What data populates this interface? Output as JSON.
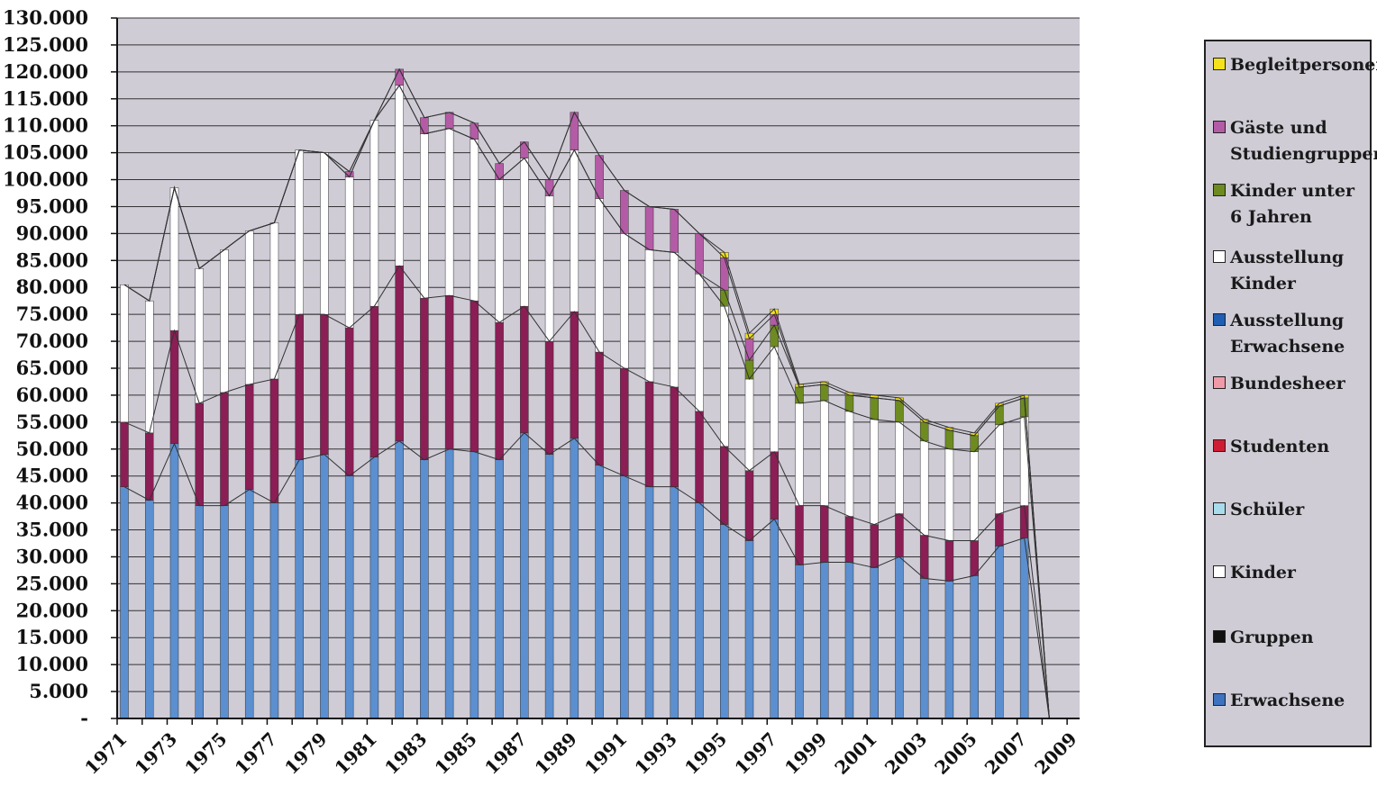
{
  "chart_data": {
    "type": "bar",
    "stacked": true,
    "title": "",
    "xlabel": "",
    "ylabel": "",
    "ylim": [
      0,
      130000
    ],
    "y_ticks": [
      "-",
      "5.000",
      "10.000",
      "15.000",
      "20.000",
      "25.000",
      "30.000",
      "35.000",
      "40.000",
      "45.000",
      "50.000",
      "55.000",
      "60.000",
      "65.000",
      "70.000",
      "75.000",
      "80.000",
      "85.000",
      "90.000",
      "95.000",
      "100.000",
      "105.000",
      "110.000",
      "115.000",
      "120.000",
      "125.000",
      "130.000"
    ],
    "x_tick_labels": [
      "1971",
      "1973",
      "1975",
      "1977",
      "1979",
      "1981",
      "1983",
      "1985",
      "1987",
      "1989",
      "1991",
      "1993",
      "1995",
      "1997",
      "1999",
      "2001",
      "2003",
      "2005",
      "2007",
      "2009"
    ],
    "x_range": [
      1971,
      2009
    ],
    "grid": true,
    "legend_position": "right",
    "categories": [
      "1971",
      "1972",
      "1973",
      "1974",
      "1975",
      "1976",
      "1977",
      "1978",
      "1979",
      "1980",
      "1981",
      "1982",
      "1983",
      "1984",
      "1985",
      "1986",
      "1987",
      "1988",
      "1989",
      "1990",
      "1991",
      "1992",
      "1993",
      "1994",
      "1995",
      "1996",
      "1997",
      "1998",
      "1999",
      "2000",
      "2001",
      "2002",
      "2003",
      "2004",
      "2005",
      "2006",
      "2007",
      "2008",
      "2009"
    ],
    "series": [
      {
        "name": "Erwachsene",
        "color": "#5b8fd0",
        "values": [
          43000,
          40500,
          51000,
          39500,
          39500,
          42500,
          40000,
          48000,
          49000,
          45000,
          48500,
          51500,
          48000,
          50000,
          49500,
          48000,
          53000,
          49000,
          52000,
          47000,
          45000,
          43000,
          43000,
          40000,
          36000,
          33000,
          37000,
          28500,
          29000,
          29000,
          28000,
          30000,
          26000,
          25500,
          26500,
          32000,
          33500,
          0,
          0
        ]
      },
      {
        "name": "Gruppen",
        "color": "#111111",
        "values": [
          0,
          0,
          0,
          0,
          0,
          0,
          0,
          0,
          0,
          0,
          0,
          0,
          0,
          0,
          0,
          0,
          0,
          0,
          0,
          0,
          0,
          0,
          0,
          0,
          0,
          0,
          0,
          0,
          0,
          0,
          0,
          0,
          0,
          0,
          0,
          0,
          0,
          0,
          0
        ]
      },
      {
        "name": "Kinder",
        "color": "#ffffff",
        "values": [
          0,
          0,
          0,
          0,
          0,
          0,
          0,
          0,
          0,
          0,
          0,
          0,
          0,
          0,
          0,
          0,
          0,
          0,
          0,
          0,
          0,
          0,
          0,
          0,
          0,
          0,
          0,
          0,
          0,
          0,
          0,
          0,
          0,
          0,
          0,
          0,
          0,
          0,
          0
        ]
      },
      {
        "name": "Schüler",
        "color": "#a8dcec",
        "values": [
          0,
          0,
          0,
          0,
          0,
          0,
          0,
          0,
          0,
          0,
          0,
          0,
          0,
          0,
          0,
          0,
          0,
          0,
          0,
          0,
          0,
          0,
          0,
          0,
          0,
          0,
          0,
          0,
          0,
          0,
          0,
          0,
          0,
          0,
          0,
          0,
          0,
          0,
          0
        ]
      },
      {
        "name": "Studenten",
        "color": "#d01c33",
        "values": [
          0,
          0,
          0,
          0,
          0,
          0,
          0,
          0,
          0,
          0,
          0,
          0,
          0,
          0,
          0,
          0,
          0,
          0,
          0,
          0,
          0,
          0,
          0,
          0,
          0,
          0,
          0,
          0,
          0,
          0,
          0,
          0,
          0,
          0,
          0,
          0,
          0,
          0,
          0
        ]
      },
      {
        "name": "Bundesheer",
        "color": "#f09aa8",
        "values": [
          0,
          0,
          0,
          0,
          0,
          0,
          0,
          0,
          0,
          0,
          0,
          0,
          0,
          0,
          0,
          0,
          0,
          0,
          0,
          0,
          0,
          0,
          0,
          0,
          0,
          0,
          0,
          0,
          0,
          0,
          0,
          0,
          0,
          0,
          0,
          0,
          0,
          0,
          0
        ]
      },
      {
        "name": "Ausstellung Erwachsene",
        "color": "#8b1e55",
        "values": [
          12000,
          12500,
          21000,
          19000,
          21000,
          19500,
          23000,
          27000,
          26000,
          27500,
          28000,
          32500,
          30000,
          28500,
          28000,
          25500,
          23500,
          21000,
          23500,
          21000,
          20000,
          19500,
          18500,
          17000,
          14500,
          13000,
          12500,
          11000,
          10500,
          8500,
          8000,
          8000,
          8000,
          7500,
          6500,
          6000,
          6000,
          0,
          0
        ]
      },
      {
        "name": "Ausstellung Kinder",
        "color": "#ffffff",
        "values": [
          25500,
          24500,
          26500,
          25000,
          26500,
          28500,
          29000,
          30500,
          30000,
          28000,
          34500,
          33500,
          30500,
          31000,
          30000,
          26500,
          27500,
          27000,
          30000,
          28500,
          25000,
          24500,
          25000,
          25500,
          26000,
          17000,
          19500,
          19000,
          19500,
          19500,
          19500,
          17000,
          17500,
          17000,
          16500,
          16500,
          16500,
          0,
          0
        ]
      },
      {
        "name": "Kinder unter 6 Jahren",
        "color": "#6d8b1f",
        "values": [
          0,
          0,
          0,
          0,
          0,
          0,
          0,
          0,
          0,
          0,
          0,
          0,
          0,
          0,
          0,
          0,
          0,
          0,
          0,
          0,
          0,
          0,
          0,
          0,
          3000,
          3500,
          4000,
          3000,
          3000,
          3000,
          4000,
          4000,
          3500,
          3500,
          3000,
          3500,
          3500,
          0,
          0
        ]
      },
      {
        "name": "Gäste und Studiengruppen",
        "color": "#b45ba6",
        "values": [
          0,
          0,
          0,
          0,
          0,
          0,
          0,
          0,
          0,
          1000,
          0,
          3000,
          3000,
          3000,
          3000,
          3000,
          3000,
          3000,
          7000,
          8000,
          8000,
          8000,
          8000,
          7500,
          6000,
          4000,
          2000,
          0,
          0,
          0,
          0,
          0,
          0,
          0,
          0,
          0,
          0,
          0,
          0
        ]
      },
      {
        "name": "Begleitpersonen",
        "color": "#f4e21a",
        "values": [
          0,
          0,
          0,
          0,
          0,
          0,
          0,
          0,
          0,
          0,
          0,
          0,
          0,
          0,
          0,
          0,
          0,
          0,
          0,
          0,
          0,
          0,
          0,
          0,
          1000,
          1000,
          1000,
          500,
          500,
          500,
          500,
          500,
          500,
          500,
          500,
          500,
          500,
          0,
          0
        ]
      }
    ]
  },
  "legend": [
    {
      "name": "Begleitpersonen",
      "color": "#f4e21a"
    },
    {
      "name": "Gäste und Studiengruppen",
      "color": "#b45ba6"
    },
    {
      "name": "Kinder unter 6 Jahren",
      "color": "#6d8b1f"
    },
    {
      "name": "Ausstellung Kinder",
      "color": "#ffffff"
    },
    {
      "name": "Ausstellung Erwachsene",
      "color": "#1f5fb3"
    },
    {
      "name": "Bundesheer",
      "color": "#f09aa8"
    },
    {
      "name": "Studenten",
      "color": "#d01c33"
    },
    {
      "name": "Schüler",
      "color": "#a8dcec"
    },
    {
      "name": "Kinder",
      "color": "#ffffff"
    },
    {
      "name": "Gruppen",
      "color": "#111111"
    },
    {
      "name": "Erwachsene",
      "color": "#3d73c1"
    }
  ],
  "colors": {
    "plot_background": "#cfccd6",
    "grid": "#333333"
  }
}
